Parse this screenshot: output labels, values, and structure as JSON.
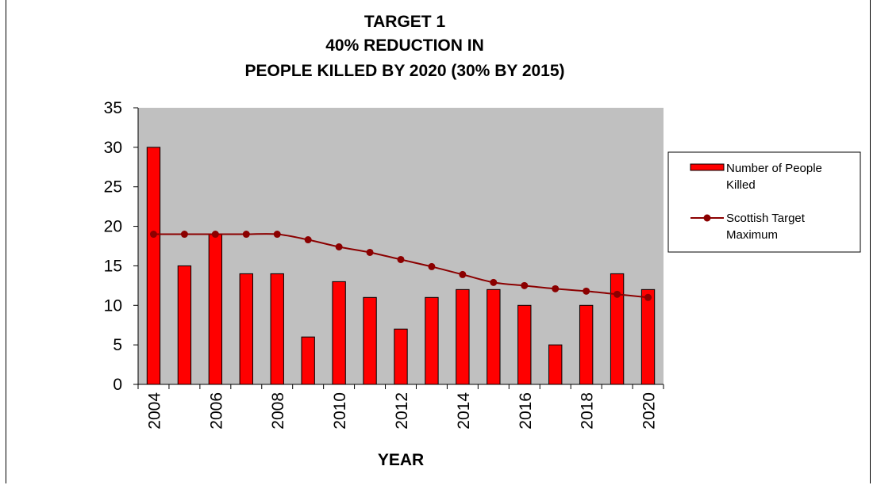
{
  "chart_data": {
    "type": "bar",
    "title_lines": [
      "TARGET 1",
      "40%  REDUCTION IN",
      "PEOPLE KILLED BY 2020 (30%  BY 2015)"
    ],
    "xlabel": "YEAR",
    "ylabel": "",
    "x": [
      2004,
      2005,
      2006,
      2007,
      2008,
      2009,
      2010,
      2011,
      2012,
      2013,
      2014,
      2015,
      2016,
      2017,
      2018,
      2019,
      2020
    ],
    "x_tick_labels": [
      "2004",
      "2006",
      "2008",
      "2010",
      "2012",
      "2014",
      "2016",
      "2018",
      "2020"
    ],
    "ylim": [
      0,
      35
    ],
    "y_ticks": [
      0,
      5,
      10,
      15,
      20,
      25,
      30,
      35
    ],
    "series": [
      {
        "name": "Number of People Killed",
        "legend_lines": [
          "Number of People",
          "Killed"
        ],
        "kind": "bar",
        "color": "#ff0000",
        "values": [
          30,
          15,
          19,
          14,
          14,
          6,
          13,
          11,
          7,
          11,
          12,
          12,
          10,
          5,
          10,
          14,
          12
        ]
      },
      {
        "name": "Scottish Target Maximum",
        "legend_lines": [
          "Scottish Target",
          "Maximum"
        ],
        "kind": "line",
        "color": "#8b0000",
        "values": [
          19,
          19,
          19,
          19,
          19,
          18.3,
          17.4,
          16.7,
          15.8,
          14.9,
          13.9,
          12.9,
          12.5,
          12.1,
          11.8,
          11.4,
          11
        ]
      }
    ],
    "plot_background": "#c0c0c0",
    "grid": false,
    "legend_position": "right"
  }
}
